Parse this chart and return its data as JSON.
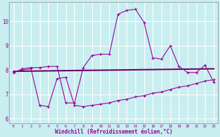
{
  "title": "",
  "xlabel": "Windchill (Refroidissement éolien,°C)",
  "bg_color": "#c8eef0",
  "line_color": "#990099",
  "line_color2": "#660066",
  "grid_color": "#ffffff",
  "xlim": [
    -0.5,
    23.5
  ],
  "ylim": [
    5.8,
    10.8
  ],
  "xticks": [
    0,
    1,
    2,
    3,
    4,
    5,
    6,
    7,
    8,
    9,
    10,
    11,
    12,
    13,
    14,
    15,
    16,
    17,
    18,
    19,
    20,
    21,
    22,
    23
  ],
  "yticks": [
    6,
    7,
    8,
    9,
    10
  ],
  "curve1_x": [
    0,
    1,
    2,
    3,
    4,
    5,
    6,
    7,
    8,
    9,
    10,
    11,
    12,
    13,
    14,
    15,
    16,
    17,
    18,
    19,
    20,
    21,
    22,
    23
  ],
  "curve1_y": [
    7.9,
    8.05,
    8.1,
    8.1,
    8.15,
    8.15,
    6.65,
    6.65,
    8.1,
    8.6,
    8.65,
    8.65,
    10.3,
    10.45,
    10.5,
    9.95,
    8.5,
    8.45,
    9.0,
    8.15,
    7.9,
    7.9,
    8.2,
    7.5
  ],
  "curve2_x": [
    0,
    23
  ],
  "curve2_y": [
    7.95,
    8.05
  ],
  "curve3_x": [
    0,
    1,
    2,
    3,
    4,
    5,
    6,
    7,
    8,
    9,
    10,
    11,
    12,
    13,
    14,
    15,
    16,
    17,
    18,
    19,
    20,
    21,
    22,
    23
  ],
  "curve3_y": [
    7.9,
    8.0,
    8.05,
    6.55,
    6.5,
    7.65,
    7.7,
    6.55,
    6.5,
    6.55,
    6.6,
    6.65,
    6.75,
    6.8,
    6.9,
    6.95,
    7.05,
    7.1,
    7.2,
    7.3,
    7.35,
    7.45,
    7.55,
    7.6
  ]
}
